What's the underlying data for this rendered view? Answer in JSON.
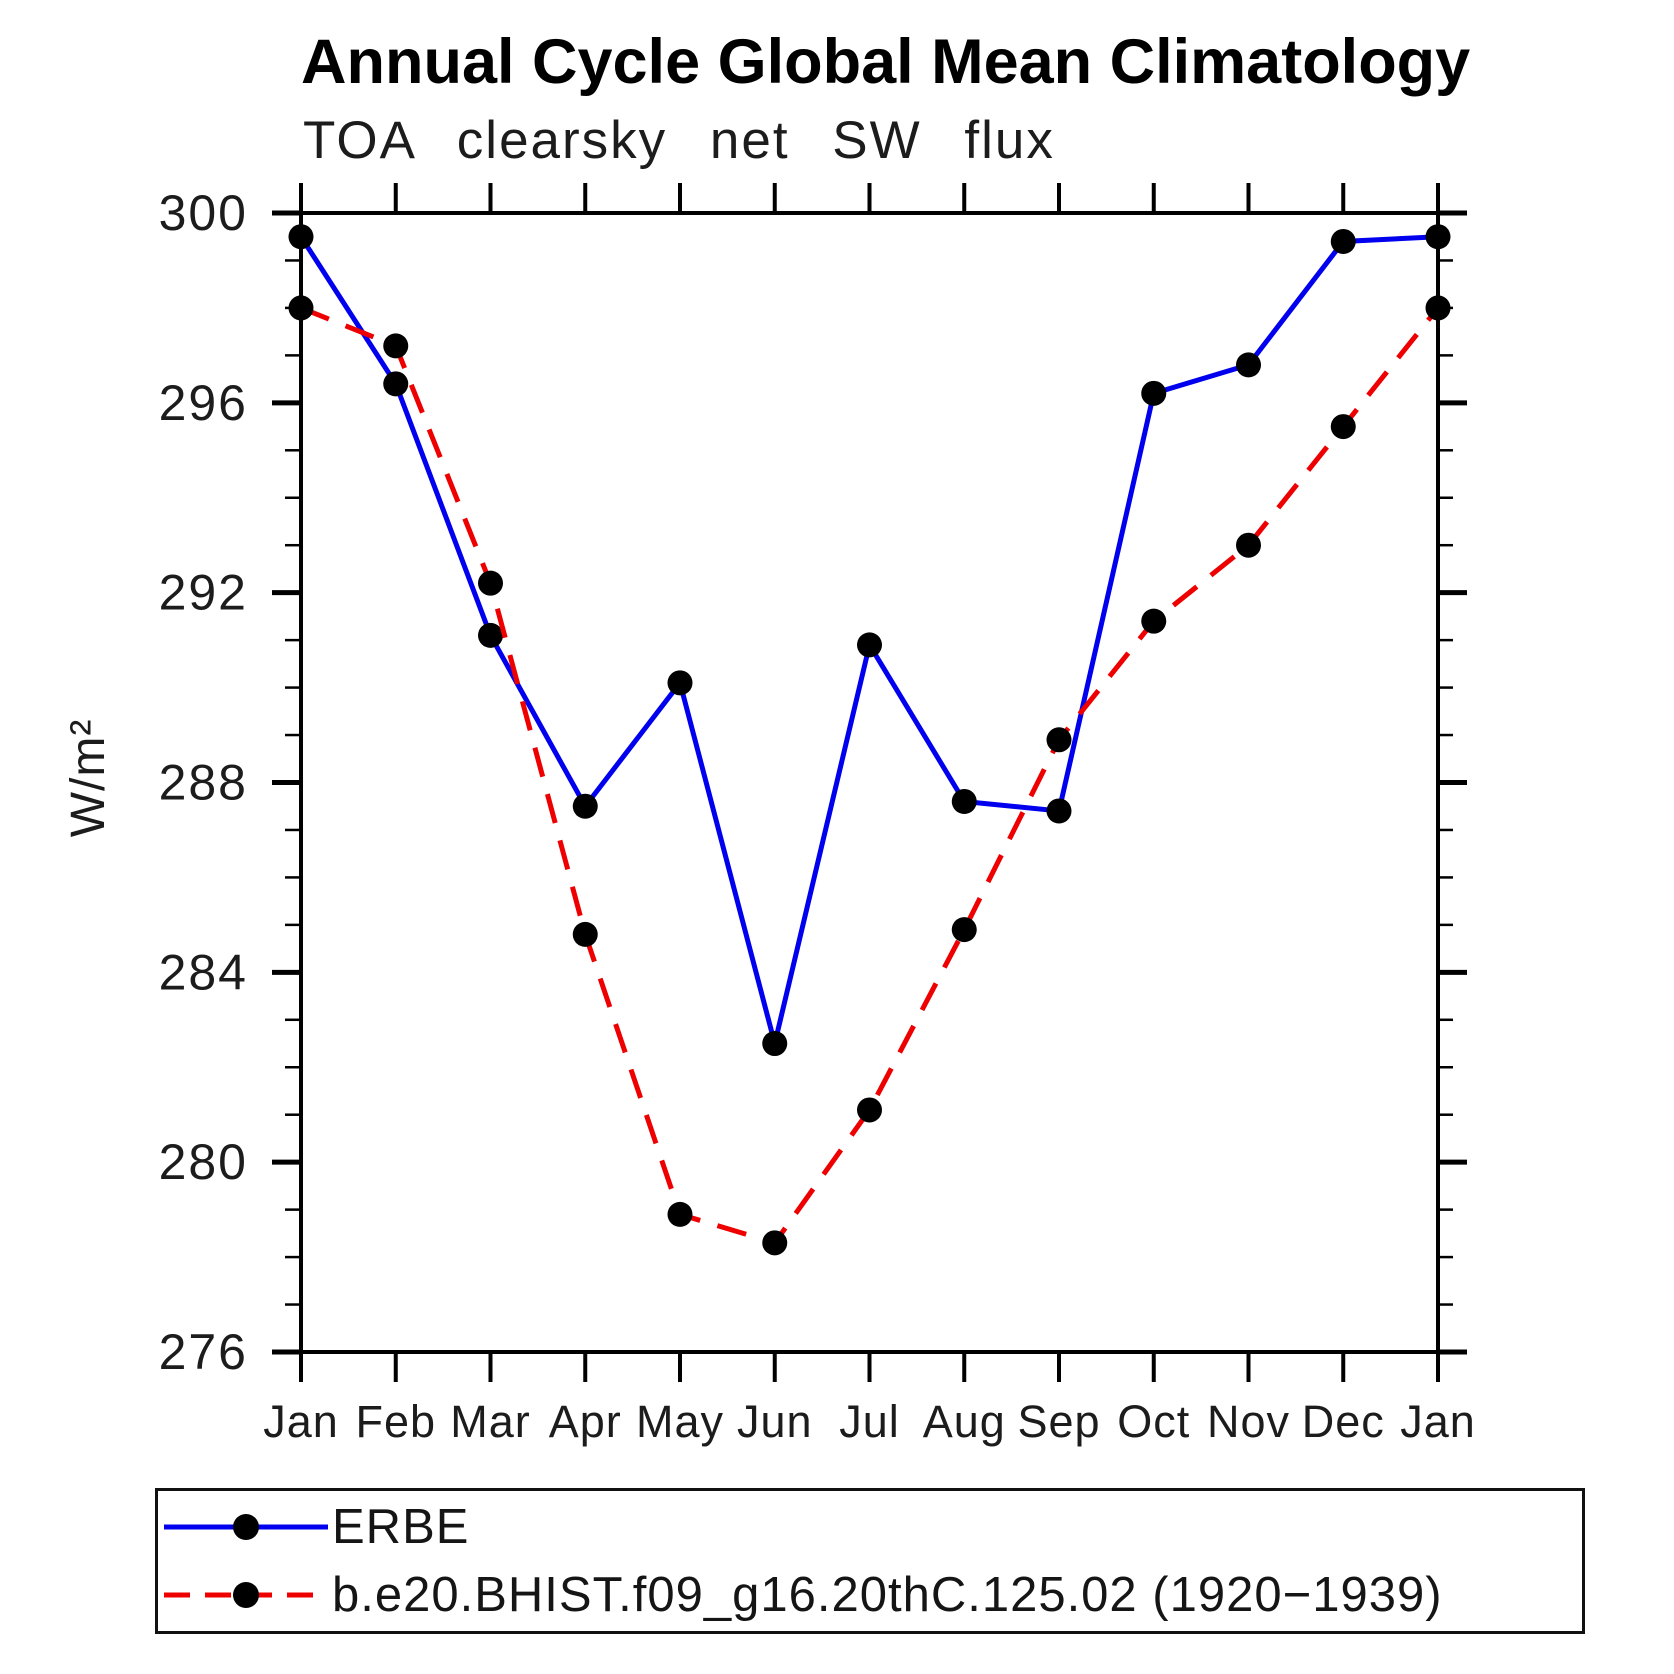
{
  "chart": {
    "title": "Annual Cycle Global Mean Climatology",
    "subtitle": "TOA clearsky net SW flux"
  },
  "chart_data": {
    "type": "line",
    "categories": [
      "Jan",
      "Feb",
      "Mar",
      "Apr",
      "May",
      "Jun",
      "Jul",
      "Aug",
      "Sep",
      "Oct",
      "Nov",
      "Dec",
      "Jan"
    ],
    "xlabel": "",
    "ylabel": "W/m²",
    "ylim": [
      276,
      300
    ],
    "ytick_major": [
      276,
      280,
      284,
      288,
      292,
      296,
      300
    ],
    "ytick_minor_step": 1,
    "grid": false,
    "legend_position": "bottom-box",
    "axis_color": "#000000",
    "marker_color": "#000000",
    "series": [
      {
        "name": "ERBE",
        "color": "#0000ee",
        "style": "solid",
        "marker": "circle",
        "values": [
          299.5,
          296.4,
          291.1,
          287.5,
          290.1,
          282.5,
          290.9,
          287.6,
          287.4,
          296.2,
          296.8,
          299.4,
          299.5
        ]
      },
      {
        "name": "b.e20.BHIST.f09_g16.20thC.125.02 (1920−1939)",
        "color": "#ee0000",
        "style": "dashed",
        "marker": "circle",
        "values": [
          298.0,
          297.2,
          292.2,
          284.8,
          278.9,
          278.3,
          281.1,
          284.9,
          288.9,
          291.4,
          293.0,
          295.5,
          298.0
        ]
      }
    ]
  }
}
